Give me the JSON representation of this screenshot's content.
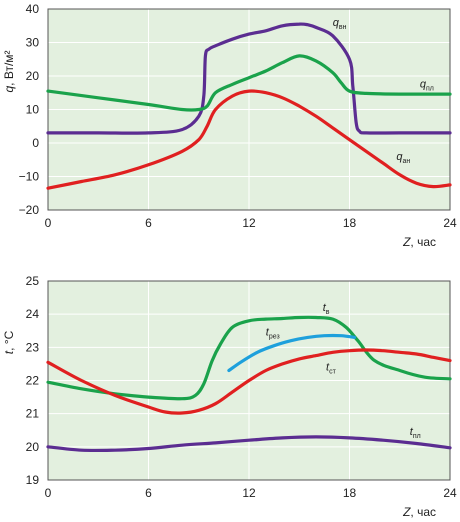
{
  "chart_data": [
    {
      "type": "line",
      "title": "",
      "ylabel": {
        "text": "q, Вт/м²",
        "var": "q",
        "rest": ", Вт/м²"
      },
      "xlabel": {
        "text": "Z, час",
        "var": "Z",
        "rest": ", час"
      },
      "xlim": [
        0,
        24
      ],
      "ylim": [
        -20,
        40
      ],
      "xticks": [
        0,
        6,
        12,
        18,
        24
      ],
      "yticks": [
        -20,
        -10,
        0,
        10,
        20,
        30,
        40
      ],
      "xtick_labels": [
        "0",
        "6",
        "12",
        "18",
        "24"
      ],
      "ytick_labels": [
        "−20",
        "−10",
        "0",
        "10",
        "20",
        "30",
        "40"
      ],
      "grid": true,
      "series": [
        {
          "name": "q_вн",
          "main": "q",
          "sub": "вн",
          "color": "#5b2d91",
          "label_at": [
            17,
            35
          ],
          "x": [
            0,
            3,
            6,
            8,
            9,
            9.3,
            9.4,
            9.6,
            10,
            11,
            12,
            13,
            14,
            15,
            15.5,
            16,
            17,
            18,
            18.2,
            18.4,
            18.6,
            19,
            21,
            24
          ],
          "y": [
            3,
            3,
            3,
            4,
            8,
            14,
            26,
            28,
            29,
            31,
            32.5,
            33.5,
            35,
            35.5,
            35.3,
            34.5,
            32,
            25,
            17,
            6,
            3.5,
            3,
            3,
            3
          ]
        },
        {
          "name": "q_пл",
          "main": "q",
          "sub": "пл",
          "color": "#1aa24b",
          "label_at": [
            22.2,
            16.5
          ],
          "x": [
            0,
            3,
            6,
            8,
            9,
            9.5,
            10,
            11,
            12,
            13,
            14,
            15,
            16,
            17,
            17.5,
            18,
            19,
            21,
            24
          ],
          "y": [
            15.5,
            13.5,
            11.5,
            10,
            10,
            11,
            15,
            17.5,
            19.5,
            21.5,
            24,
            26,
            24.5,
            21,
            18,
            15.5,
            14.8,
            14.6,
            14.6
          ]
        },
        {
          "name": "q_ан",
          "main": "q",
          "sub": "ан",
          "color": "#e02020",
          "label_at": [
            20.8,
            -5
          ],
          "x": [
            0,
            2,
            4,
            6,
            8,
            9,
            9.5,
            10,
            11,
            12,
            13,
            14,
            15,
            16,
            17,
            18,
            19,
            20,
            21,
            22,
            23,
            24
          ],
          "y": [
            -13.5,
            -11.5,
            -9.5,
            -6.5,
            -2.5,
            1,
            5,
            10,
            14,
            15.5,
            15,
            13.5,
            11,
            8,
            4.5,
            1,
            -2.5,
            -6,
            -9.5,
            -12,
            -13,
            -12.5
          ]
        }
      ]
    },
    {
      "type": "line",
      "title": "",
      "ylabel": {
        "text": "t, °C",
        "var": "t",
        "rest": ", °C"
      },
      "xlabel": {
        "text": "Z, час",
        "var": "Z",
        "rest": ", час"
      },
      "xlim": [
        0,
        24
      ],
      "ylim": [
        19,
        25
      ],
      "xticks": [
        0,
        6,
        12,
        18,
        24
      ],
      "yticks": [
        19,
        20,
        21,
        22,
        23,
        24,
        25
      ],
      "xtick_labels": [
        "0",
        "6",
        "12",
        "18",
        "24"
      ],
      "ytick_labels": [
        "19",
        "20",
        "21",
        "22",
        "23",
        "24",
        "25"
      ],
      "grid": true,
      "series": [
        {
          "name": "t_в",
          "main": "t",
          "sub": "в",
          "color": "#1aa24b",
          "label_at": [
            16.4,
            24.1
          ],
          "x": [
            0,
            2,
            4,
            6,
            8,
            8.8,
            9.3,
            9.8,
            10.3,
            11,
            12,
            13,
            14,
            15,
            16,
            17,
            17.8,
            18.5,
            19.5,
            21,
            22.5,
            24
          ],
          "y": [
            21.95,
            21.75,
            21.6,
            21.5,
            21.45,
            21.55,
            21.9,
            22.6,
            23.1,
            23.6,
            23.8,
            23.85,
            23.87,
            23.9,
            23.9,
            23.85,
            23.6,
            23.2,
            22.6,
            22.3,
            22.1,
            22.05
          ]
        },
        {
          "name": "t_рез",
          "main": "t",
          "sub": "рез",
          "color": "#1ea0dc",
          "label_at": [
            13,
            23.35
          ],
          "x": [
            10.8,
            11.5,
            12.5,
            13.5,
            14.5,
            15.5,
            16.5,
            17.5,
            18.3
          ],
          "y": [
            22.3,
            22.55,
            22.85,
            23.05,
            23.2,
            23.3,
            23.35,
            23.35,
            23.3
          ]
        },
        {
          "name": "t_ст",
          "main": "t",
          "sub": "ст",
          "color": "#e02020",
          "label_at": [
            16.6,
            22.3
          ],
          "x": [
            0,
            2,
            4,
            6,
            7,
            8,
            9,
            10,
            11,
            12,
            13,
            14,
            15,
            16,
            17,
            18,
            19,
            20,
            21,
            22,
            23,
            24
          ],
          "y": [
            22.55,
            22,
            21.55,
            21.2,
            21.05,
            21.02,
            21.1,
            21.3,
            21.65,
            22,
            22.3,
            22.5,
            22.65,
            22.75,
            22.85,
            22.9,
            22.92,
            22.9,
            22.85,
            22.8,
            22.7,
            22.6
          ]
        },
        {
          "name": "t_пл",
          "main": "t",
          "sub": "пл",
          "color": "#5b2d91",
          "label_at": [
            21.6,
            20.35
          ],
          "x": [
            0,
            2,
            4,
            6,
            8,
            10,
            12,
            14,
            16,
            18,
            20,
            22,
            24
          ],
          "y": [
            20,
            19.9,
            19.9,
            19.95,
            20.05,
            20.12,
            20.2,
            20.27,
            20.3,
            20.27,
            20.2,
            20.1,
            19.97
          ]
        }
      ]
    }
  ]
}
